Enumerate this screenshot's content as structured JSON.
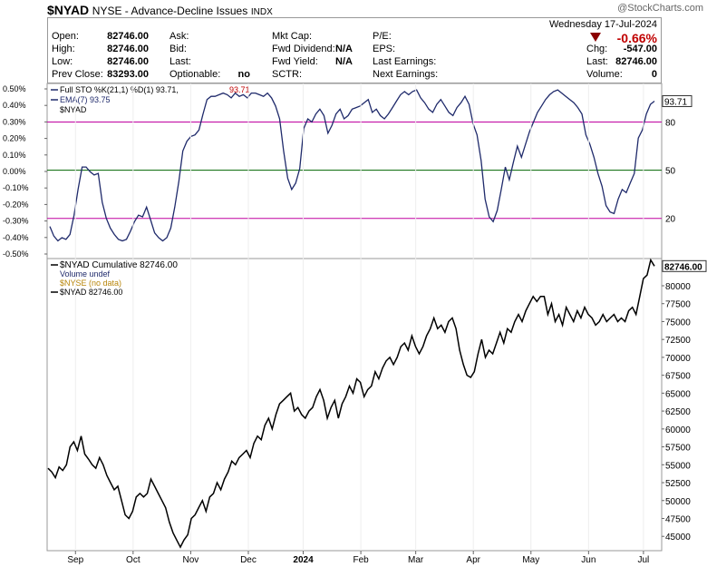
{
  "header": {
    "symbol": "$NYAD",
    "description": "NYSE - Advance-Decline Issues",
    "exchange": "INDX",
    "watermark": "@StockCharts.com"
  },
  "quote": {
    "date": "Wednesday  17-Jul-2024",
    "pct_change": "-0.66%",
    "rows": [
      [
        "Open:",
        "82746.00",
        "Ask:",
        "",
        "Mkt Cap:",
        "",
        "P/E:",
        ""
      ],
      [
        "High:",
        "82746.00",
        "Bid:",
        "",
        "Fwd Dividend:",
        "N/A",
        "EPS:",
        "-547.00"
      ],
      [
        "Low:",
        "82746.00",
        "Last:",
        "",
        "Fwd Yield:",
        "N/A",
        "Last Earnings:",
        "Last: 82746.00"
      ],
      [
        "Prev Close:",
        "83293.00",
        "Optionable:",
        "no",
        "SCTR:",
        "",
        "Next Earnings:",
        "Volume: 0"
      ]
    ],
    "right_labels": [
      "",
      "Chg:",
      "",
      ""
    ],
    "chg_value": "-547.00",
    "last_label": "Last:",
    "last_value": "82746.00",
    "volume_label": "Volume:",
    "volume_value": "0",
    "eps_label": "EPS:",
    "last_earnings_label": "Last Earnings:",
    "next_earnings_label": "Next Earnings:",
    "pe_label": "P/E:"
  },
  "colors": {
    "line": "#1f2a6b",
    "price": "#000000",
    "overbought": "#c000a0",
    "midline": "#006400",
    "ema_label": "#1f2a6b",
    "red": "#c00000",
    "grid": "#dddddd"
  },
  "chart_data": [
    {
      "type": "line",
      "title": "Full STO %K(21,1) %D(1) 93.71, 93.71",
      "legend": [
        {
          "label": "Full STO %K(21,1) %D(1) 93.71,",
          "value": "93.71"
        },
        {
          "label": "EMA(7) 93.75"
        },
        {
          "label": "$NYAD"
        }
      ],
      "left_ticks": [
        "0.50%",
        "0.40%",
        "0.30%",
        "0.20%",
        "0.10%",
        "0.00%",
        "-0.10%",
        "-0.20%",
        "-0.30%",
        "-0.40%",
        "-0.50%"
      ],
      "right_ticks": [
        {
          "value": 80,
          "label": "80"
        },
        {
          "value": 50,
          "label": "50"
        },
        {
          "value": 20,
          "label": "20"
        }
      ],
      "last_label": "93.71",
      "ylim": [
        -5,
        104
      ],
      "series": [
        {
          "name": "Full STO %K(21,1) %D(1)",
          "values": [
            15,
            9,
            6,
            8,
            7,
            10,
            22,
            38,
            52,
            52,
            49,
            47,
            48,
            30,
            20,
            14,
            10,
            7,
            6,
            7,
            12,
            18,
            22,
            21,
            27,
            19,
            11,
            8,
            6,
            8,
            14,
            27,
            43,
            62,
            68,
            71,
            72,
            75,
            85,
            94,
            96,
            96,
            97,
            98,
            97,
            95,
            98,
            96,
            97,
            95,
            98,
            98,
            97,
            96,
            98,
            95,
            90,
            82,
            62,
            45,
            38,
            42,
            51,
            76,
            82,
            80,
            85,
            88,
            84,
            73,
            78,
            85,
            88,
            82,
            84,
            88,
            89,
            90,
            92,
            94,
            86,
            88,
            84,
            82,
            85,
            89,
            93,
            97,
            99,
            97,
            99,
            100,
            95,
            92,
            88,
            86,
            91,
            94,
            90,
            86,
            84,
            89,
            92,
            96,
            91,
            79,
            72,
            56,
            32,
            21,
            18,
            25,
            38,
            52,
            44,
            55,
            65,
            58,
            66,
            74,
            80,
            86,
            90,
            94,
            97,
            99,
            100,
            98,
            96,
            94,
            92,
            89,
            85,
            72,
            66,
            58,
            48,
            40,
            28,
            24,
            23,
            32,
            38,
            36,
            42,
            48,
            70,
            75,
            85,
            91,
            93
          ]
        }
      ]
    },
    {
      "type": "line",
      "title": "$NYAD Cumulative 82746.00",
      "legend": [
        {
          "label": "$NYAD Cumulative 82746.00"
        },
        {
          "label": "Volume undef"
        },
        {
          "label": "$NYSE (no data)"
        },
        {
          "label": "$NYAD 82746.00"
        }
      ],
      "right_ticks": [
        45000,
        47500,
        50000,
        52500,
        55000,
        57500,
        60000,
        62500,
        65000,
        67500,
        70000,
        72500,
        75000,
        77500,
        80000
      ],
      "right_tick_labels": [
        "45000",
        "47500",
        "50000",
        "52500",
        "55000",
        "57500",
        "60000",
        "62500",
        "65000",
        "67500",
        "70000",
        "72500",
        "75000",
        "77500",
        "80000"
      ],
      "last_label": "82746.00",
      "ylim": [
        43000,
        83800
      ],
      "x_labels": [
        {
          "label": "Sep",
          "index": 10
        },
        {
          "label": "Oct",
          "index": 31
        },
        {
          "label": "Nov",
          "index": 52
        },
        {
          "label": "Dec",
          "index": 73
        },
        {
          "label": "2024",
          "index": 93
        },
        {
          "label": "Feb",
          "index": 114
        },
        {
          "label": "Mar",
          "index": 134
        },
        {
          "label": "Apr",
          "index": 155
        },
        {
          "label": "May",
          "index": 176
        },
        {
          "label": "Jun",
          "index": 197
        },
        {
          "label": "Jul",
          "index": 217
        }
      ],
      "series": [
        {
          "name": "$NYAD Cumulative",
          "values": [
            54500,
            54000,
            53200,
            54700,
            54200,
            55000,
            57500,
            58200,
            57000,
            59000,
            56500,
            55800,
            55000,
            54500,
            56000,
            55000,
            53500,
            52500,
            51500,
            52000,
            50000,
            48000,
            47500,
            48500,
            50500,
            51000,
            50500,
            51000,
            53000,
            52000,
            51000,
            50000,
            49000,
            47000,
            45500,
            44500,
            43500,
            44500,
            45200,
            47500,
            48000,
            49000,
            50000,
            48500,
            50500,
            51000,
            52500,
            51500,
            53000,
            54000,
            55500,
            55000,
            56000,
            56500,
            57000,
            56000,
            58000,
            59000,
            58500,
            60500,
            61500,
            60000,
            62000,
            63500,
            64000,
            64500,
            65000,
            62500,
            63000,
            62000,
            61500,
            62500,
            63000,
            64500,
            65500,
            64000,
            61500,
            63000,
            64000,
            61500,
            63500,
            64500,
            66000,
            65000,
            67000,
            66500,
            64500,
            65500,
            66000,
            68000,
            67000,
            68500,
            69500,
            70000,
            69000,
            70000,
            71500,
            72000,
            71000,
            73000,
            71500,
            70500,
            71500,
            73000,
            74000,
            75500,
            74000,
            74500,
            73500,
            75000,
            75500,
            74000,
            71000,
            69000,
            67500,
            67200,
            68000,
            70500,
            72500,
            70000,
            71000,
            70500,
            72000,
            73500,
            72000,
            74000,
            73500,
            75000,
            76000,
            75000,
            76500,
            77500,
            78500,
            77800,
            78500,
            78500,
            76000,
            77500,
            75000,
            76000,
            74500,
            77000,
            76000,
            75000,
            76500,
            75500,
            77000,
            76000,
            75500,
            74500,
            75000,
            76000,
            75000,
            75500,
            76000,
            75000,
            75500,
            75000,
            76500,
            77000,
            76000,
            78500,
            81000,
            81500,
            83600,
            82746
          ]
        }
      ]
    }
  ]
}
